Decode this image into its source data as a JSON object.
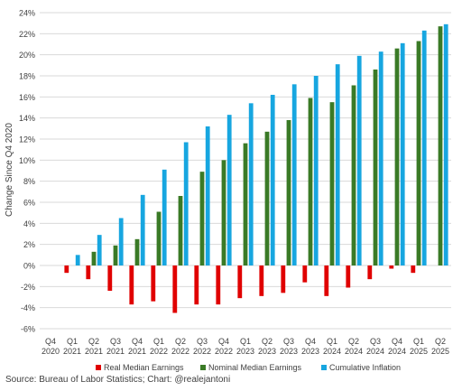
{
  "chart_data": {
    "type": "bar",
    "ylabel": "Change Since Q4 2020",
    "ylim": [
      -6,
      24
    ],
    "ytick_step": 2,
    "ytick_suffix": "%",
    "grid": true,
    "legend_position": "bottom",
    "categories": [
      {
        "q": "Q4",
        "y": "2020"
      },
      {
        "q": "Q1",
        "y": "2021"
      },
      {
        "q": "Q2",
        "y": "2021"
      },
      {
        "q": "Q3",
        "y": "2021"
      },
      {
        "q": "Q4",
        "y": "2021"
      },
      {
        "q": "Q1",
        "y": "2022"
      },
      {
        "q": "Q2",
        "y": "2022"
      },
      {
        "q": "Q3",
        "y": "2022"
      },
      {
        "q": "Q4",
        "y": "2022"
      },
      {
        "q": "Q1",
        "y": "2023"
      },
      {
        "q": "Q2",
        "y": "2023"
      },
      {
        "q": "Q3",
        "y": "2023"
      },
      {
        "q": "Q4",
        "y": "2023"
      },
      {
        "q": "Q1",
        "y": "2024"
      },
      {
        "q": "Q2",
        "y": "2024"
      },
      {
        "q": "Q3",
        "y": "2024"
      },
      {
        "q": "Q4",
        "y": "2024"
      },
      {
        "q": "Q1",
        "y": "2025"
      },
      {
        "q": "Q2",
        "y": "2025"
      }
    ],
    "series": [
      {
        "name": "Real Median Earnings",
        "color": "#e00000",
        "values": [
          0,
          -0.7,
          -1.3,
          -2.4,
          -3.7,
          -3.4,
          -4.5,
          -3.7,
          -3.7,
          -3.1,
          -2.9,
          -2.6,
          -1.6,
          -2.9,
          -2.1,
          -1.3,
          -0.3,
          -0.7,
          0
        ]
      },
      {
        "name": "Nominal Median Earnings",
        "color": "#3a7a26",
        "values": [
          0,
          0,
          1.3,
          1.9,
          2.5,
          5.1,
          6.6,
          8.9,
          10.0,
          11.6,
          12.7,
          13.8,
          15.9,
          15.5,
          17.1,
          18.6,
          20.6,
          21.3,
          22.7
        ]
      },
      {
        "name": "Cumulative Inflation",
        "color": "#17a6e0",
        "values": [
          0,
          1.0,
          2.9,
          4.5,
          6.7,
          9.1,
          11.7,
          13.2,
          14.3,
          15.4,
          16.2,
          17.2,
          18.0,
          19.1,
          19.9,
          20.3,
          21.1,
          22.3,
          22.9
        ]
      }
    ]
  },
  "source_text": "Source: Bureau of Labor Statistics; Chart: @realejantoni"
}
